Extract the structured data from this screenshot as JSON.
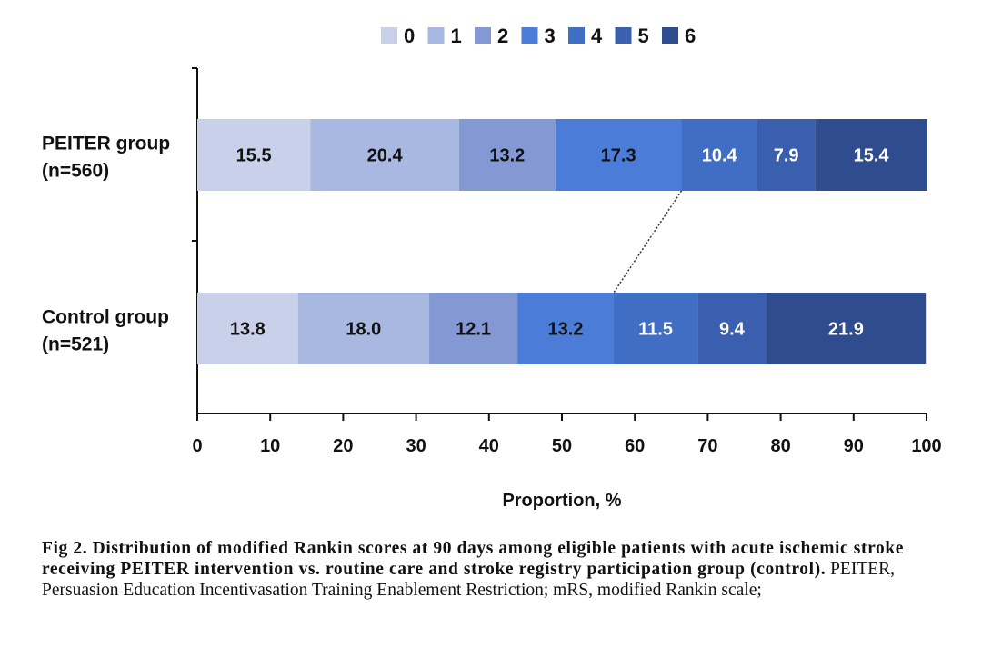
{
  "chart_data": {
    "type": "bar",
    "orientation": "horizontal",
    "stacked": true,
    "title": "",
    "xlabel": "Proportion, %",
    "ylabel": "",
    "xlim": [
      0,
      100
    ],
    "xticks": [
      0,
      10,
      20,
      30,
      40,
      50,
      60,
      70,
      80,
      90,
      100
    ],
    "categories": [
      {
        "line1": "PEITER group",
        "line2": "(n=560)"
      },
      {
        "line1": "Control group",
        "line2": "(n=521)"
      }
    ],
    "legend_position": "top",
    "series": [
      {
        "name": "0",
        "color": "#c8d0ea",
        "label_color": "#111111",
        "values": [
          15.5,
          13.8
        ]
      },
      {
        "name": "1",
        "color": "#a9b8e0",
        "label_color": "#111111",
        "values": [
          20.4,
          18.0
        ]
      },
      {
        "name": "2",
        "color": "#8498d4",
        "label_color": "#111111",
        "values": [
          13.2,
          12.1
        ]
      },
      {
        "name": "3",
        "color": "#4a7cd8",
        "label_color": "#111111",
        "values": [
          17.3,
          13.2
        ]
      },
      {
        "name": "4",
        "color": "#406ec4",
        "label_color": "#ffffff",
        "values": [
          10.4,
          11.5
        ]
      },
      {
        "name": "5",
        "color": "#3a5fae",
        "label_color": "#ffffff",
        "values": [
          7.9,
          9.4
        ]
      },
      {
        "name": "6",
        "color": "#2e4c8e",
        "label_color": "#ffffff",
        "values": [
          15.4,
          21.9
        ]
      }
    ],
    "connector": {
      "from_boundary_after_series": 3,
      "style": "dotted"
    }
  },
  "caption": {
    "bold": "Fig 2. Distribution of modified Rankin scores at 90 days among eligible patients with acute ischemic stroke receiving PEITER intervention vs. routine care and stroke registry participation group (control).",
    "normal": " PEITER, Persuasion Education Incentivasation Training Enablement Restriction; mRS, modified Rankin scale;"
  }
}
